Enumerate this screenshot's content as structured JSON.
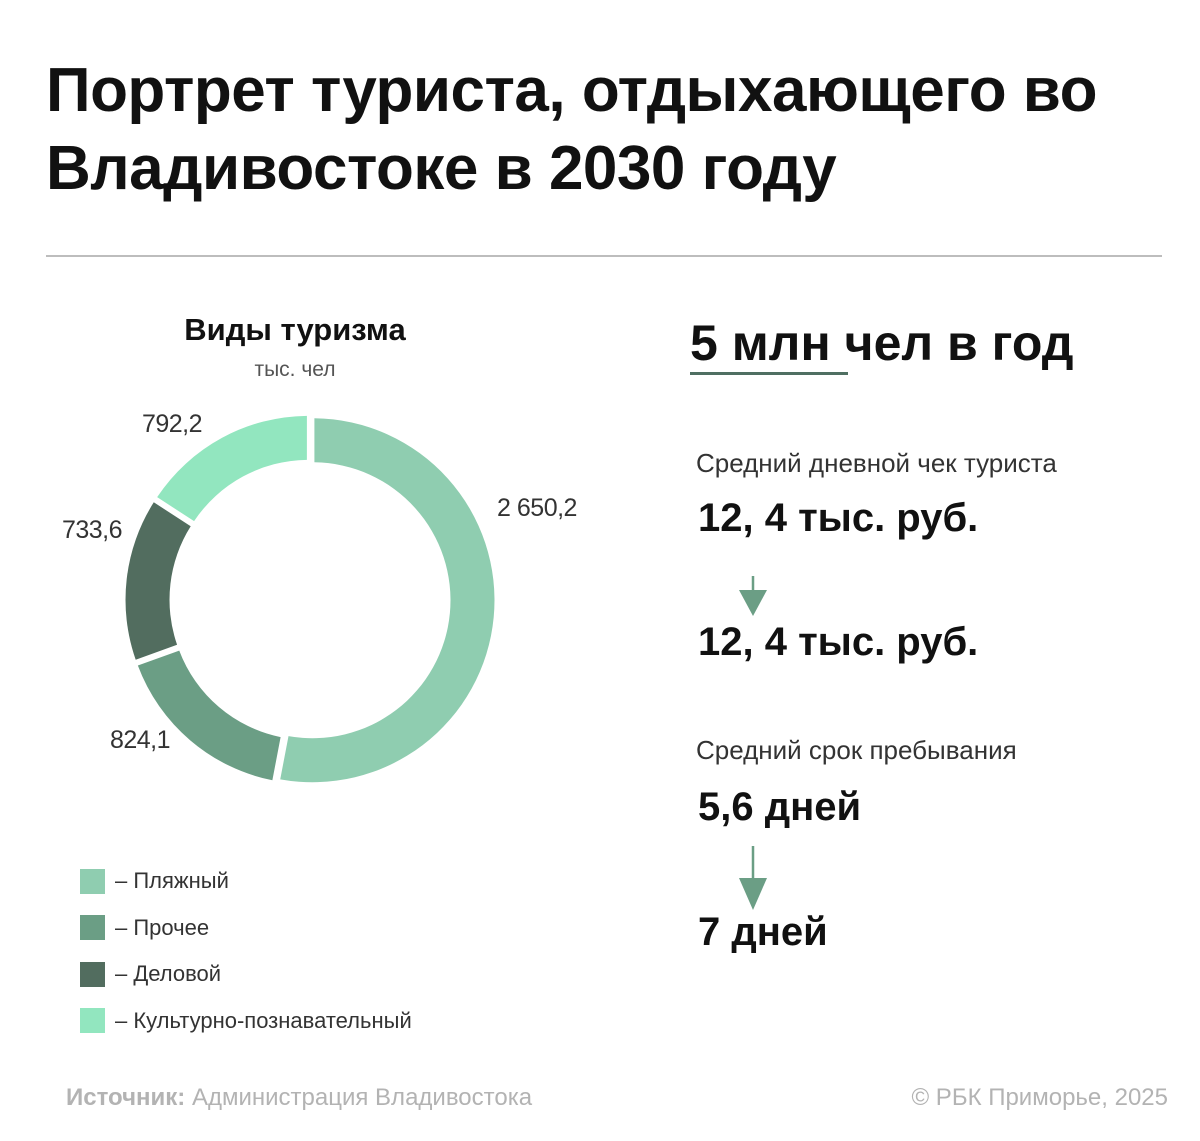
{
  "title": "Портрет туриста, отдыхающего во Владивостоке в 2030 году",
  "chart_data": {
    "type": "pie",
    "title": "Виды туризма",
    "unit": "тыс. чел",
    "categories": [
      "Пляжный",
      "Прочее",
      "Деловой",
      "Культурно-познавательный"
    ],
    "values": [
      2650.2,
      824.1,
      733.6,
      792.2
    ],
    "value_labels": [
      "2 650,2",
      "824,1",
      "733,6",
      "792,2"
    ],
    "colors": [
      "#8fcdb0",
      "#6b9e85",
      "#526d5f",
      "#92e6bf"
    ],
    "style": "donut",
    "legend_position": "bottom-left",
    "legend_labels": [
      "– Пляжный",
      "– Прочее",
      "– Деловой",
      "– Культурно-познавательный"
    ]
  },
  "headline": "5 млн чел в год",
  "stats": {
    "check_label": "Средний дневной чек туриста",
    "check_from": "12, 4 тыс. руб.",
    "check_to": "12, 4 тыс. руб.",
    "stay_label": "Средний срок пребывания",
    "stay_from": "5,6 дней",
    "stay_to": "7 дней"
  },
  "accent_colors": {
    "arrow": "#6b9e85",
    "underline": "#4f6f62"
  },
  "footer": {
    "source_label": "Источник:",
    "source_value": "Администрация Владивостока",
    "copyright": "© РБК Приморье, 2025"
  }
}
